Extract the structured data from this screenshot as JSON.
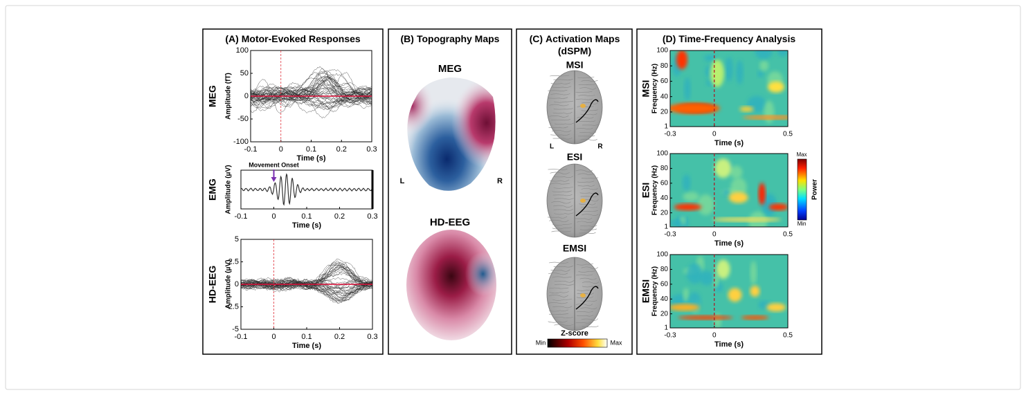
{
  "panels": [
    {
      "label": "(A)",
      "title": "Motor-Evoked Responses",
      "plots": [
        {
          "row": "MEG",
          "y_label": "Amplitude (fT)",
          "x_label": "Time (s)",
          "yticks": [
            100,
            50,
            0,
            -50,
            -100
          ],
          "xticks": [
            -0.1,
            0,
            0.1,
            0.2,
            0.3
          ]
        },
        {
          "row": "EMG",
          "y_label": "Amplitude (μV)",
          "x_label": "Time (s)",
          "annotation": "Movement Onset",
          "yticks": [],
          "xticks": [
            -0.1,
            0,
            0.1,
            0.2,
            0.3
          ]
        },
        {
          "row": "HD-EEG",
          "y_label": "Amplitude (μV)",
          "x_label": "Time (s)",
          "yticks": [
            5,
            2.5,
            0,
            -2.5,
            -5
          ],
          "xticks": [
            -0.1,
            0,
            0.1,
            0.2,
            0.3
          ]
        }
      ]
    },
    {
      "label": "(B)",
      "title": "Topography Maps",
      "maps": [
        {
          "name": "MEG",
          "left": "L",
          "right": "R"
        },
        {
          "name": "HD-EEG"
        }
      ]
    },
    {
      "label": "(C)",
      "title": "Activation Maps",
      "subtitle": "(dSPM)",
      "maps": [
        {
          "name": "MSI",
          "left": "L",
          "right": "R"
        },
        {
          "name": "ESI"
        },
        {
          "name": "EMSI"
        }
      ],
      "colorbar": {
        "title": "Z-score",
        "min": "Min",
        "max": "Max"
      }
    },
    {
      "label": "(D)",
      "title": "Time-Frequency Analysis",
      "plots": [
        {
          "row": "MSI",
          "y_label": "Frequency (Hz)",
          "x_label": "Time (s)",
          "yticks": [
            100,
            80,
            60,
            40,
            20,
            1
          ],
          "xticks": [
            -0.3,
            0,
            0.5
          ]
        },
        {
          "row": "ESI",
          "y_label": "Frequency (Hz)",
          "x_label": "Time (s)",
          "yticks": [
            100,
            80,
            60,
            40,
            20,
            1
          ],
          "xticks": [
            -0.3,
            0,
            0.5
          ]
        },
        {
          "row": "EMSI",
          "y_label": "Frequency (Hz)",
          "x_label": "Time (s)",
          "yticks": [
            100,
            80,
            60,
            40,
            20,
            1
          ],
          "xticks": [
            -0.3,
            0,
            0.5
          ]
        }
      ],
      "colorbar": {
        "title": "Power",
        "min": "Min",
        "max": "Max"
      }
    }
  ]
}
